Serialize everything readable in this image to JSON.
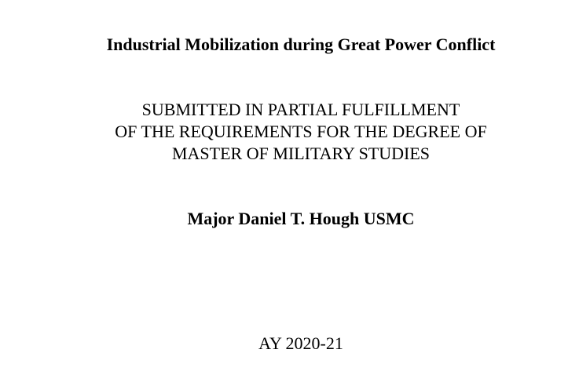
{
  "document": {
    "title": "Industrial Mobilization during Great Power Conflict",
    "submission_lines": [
      "SUBMITTED IN PARTIAL FULFILLMENT",
      "OF THE REQUIREMENTS FOR THE DEGREE OF",
      "MASTER OF MILITARY STUDIES"
    ],
    "author": "Major Daniel T. Hough USMC",
    "academic_year": "AY 2020-21"
  }
}
